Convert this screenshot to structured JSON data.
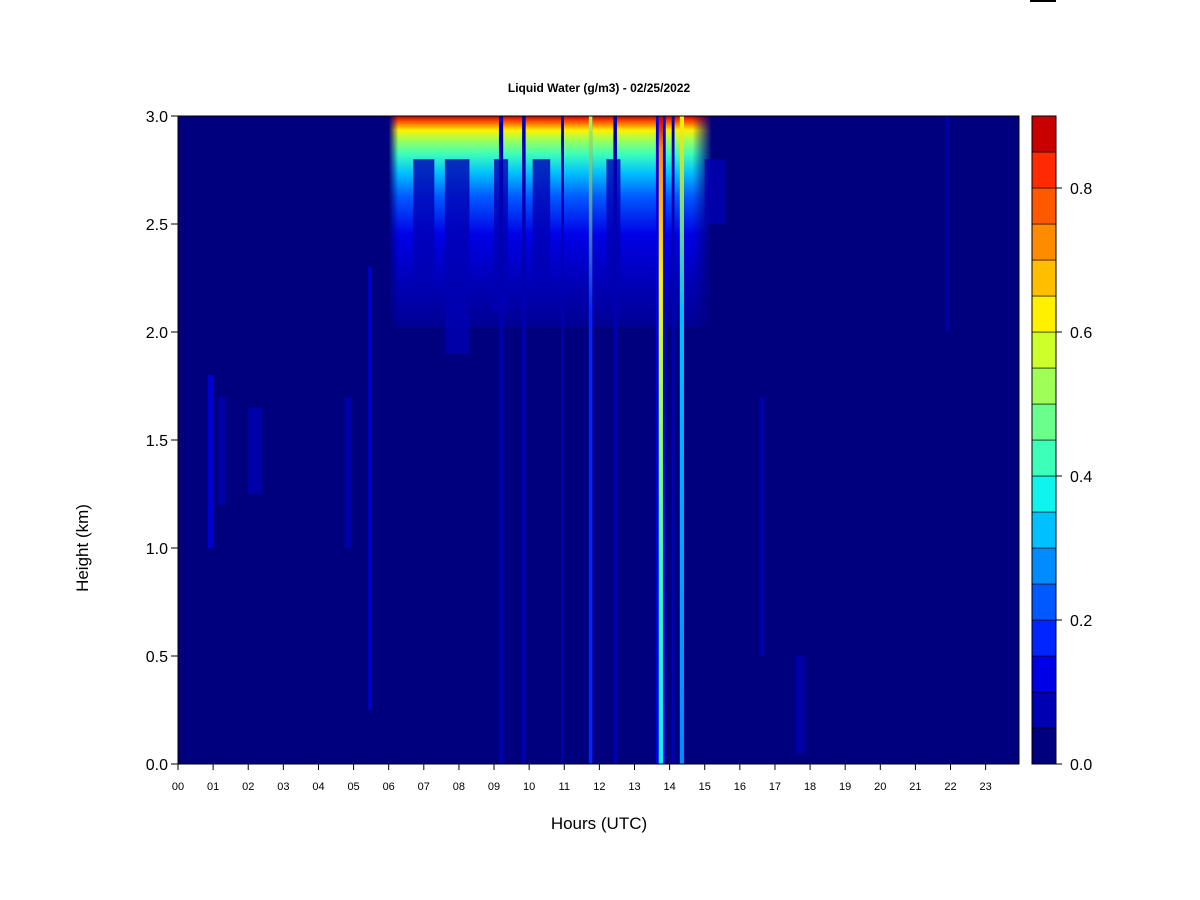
{
  "chart_data": {
    "type": "heatmap",
    "title": "Liquid Water (g/m3) - 02/25/2022",
    "xlabel": "Hours (UTC)",
    "ylabel": "Height (km)",
    "x_ticks": [
      "00",
      "01",
      "02",
      "03",
      "04",
      "05",
      "06",
      "07",
      "08",
      "09",
      "10",
      "11",
      "12",
      "13",
      "14",
      "15",
      "16",
      "17",
      "18",
      "19",
      "20",
      "21",
      "22",
      "23"
    ],
    "y_ticks": [
      "0.0",
      "0.5",
      "1.0",
      "1.5",
      "2.0",
      "2.5",
      "3.0"
    ],
    "xlim": [
      0,
      23.95
    ],
    "ylim": [
      0,
      3.0
    ],
    "colorbar": {
      "ticks": [
        "0.0",
        "0.2",
        "0.4",
        "0.6",
        "0.8"
      ],
      "range": [
        0,
        0.9
      ],
      "levels": [
        0,
        0.05,
        0.1,
        0.15,
        0.2,
        0.25,
        0.3,
        0.35,
        0.4,
        0.45,
        0.5,
        0.55,
        0.6,
        0.65,
        0.7,
        0.75,
        0.8,
        0.85,
        0.9
      ],
      "colors": [
        "#00007f",
        "#0000b3",
        "#0000e6",
        "#0025ff",
        "#0059ff",
        "#008cff",
        "#00c0ff",
        "#0ff4ed",
        "#3cffba",
        "#6aff8d",
        "#a0ff56",
        "#cdff2a",
        "#fff000",
        "#ffbf00",
        "#ff8c00",
        "#ff5900",
        "#ff2a00",
        "#c80000",
        "#800000"
      ]
    },
    "approx_features": {
      "upper_cloud_layer": {
        "hours": [
          6,
          15.2
        ],
        "height_km": [
          2.3,
          3.0
        ],
        "max_g_m3": 0.9
      },
      "vertical_streak_13_75h": {
        "hour": 13.75,
        "height_km": [
          0,
          3.0
        ],
        "peak_g_m3": 0.65,
        "surface_g_m3": 0.35
      },
      "vertical_streak_14_35h": {
        "hour": 14.35,
        "height_km": [
          0,
          3.0
        ],
        "peak_g_m3": 0.3
      },
      "vertical_streak_11_75h": {
        "hour": 11.75,
        "height_km": [
          0,
          3.0
        ],
        "peak_g_m3": 0.15
      }
    }
  }
}
